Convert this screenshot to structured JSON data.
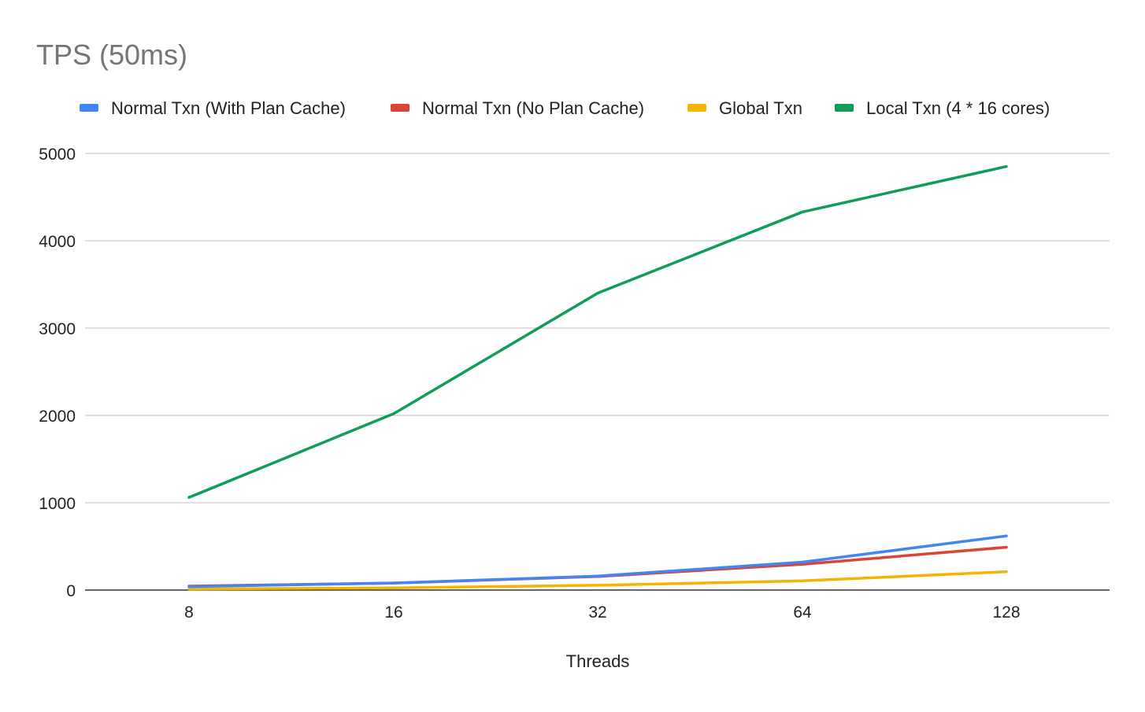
{
  "chart_data": {
    "type": "line",
    "title": "TPS (50ms)",
    "xlabel": "Threads",
    "ylabel": "",
    "categories": [
      "8",
      "16",
      "32",
      "64",
      "128"
    ],
    "ylim": [
      0,
      5000
    ],
    "yticks": [
      0,
      1000,
      2000,
      3000,
      4000,
      5000
    ],
    "grid": true,
    "legend_position": "top",
    "series": [
      {
        "name": "Normal Txn (With Plan Cache)",
        "color": "#4285F4",
        "values": [
          40,
          80,
          160,
          320,
          620
        ]
      },
      {
        "name": "Normal Txn (No Plan Cache)",
        "color": "#DB4437",
        "values": [
          45,
          80,
          155,
          295,
          490
        ]
      },
      {
        "name": "Global Txn",
        "color": "#F4B400",
        "values": [
          12,
          25,
          55,
          105,
          210
        ]
      },
      {
        "name": "Local Txn (4 * 16 cores)",
        "color": "#0F9D58",
        "values": [
          1060,
          2020,
          3400,
          4330,
          4850
        ]
      }
    ]
  }
}
